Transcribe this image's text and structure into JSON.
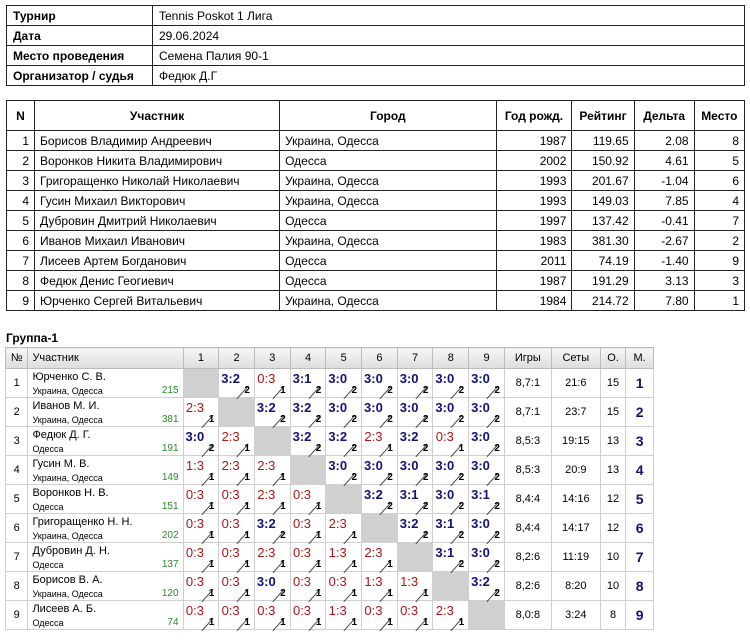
{
  "info": [
    {
      "label": "Турнир",
      "value": "Tennis Poskot 1 Лига"
    },
    {
      "label": "Дата",
      "value": "29.06.2024"
    },
    {
      "label": "Место проведения",
      "value": "Семена Палия 90-1"
    },
    {
      "label": "Организатор / судья",
      "value": "Федюк Д.Г"
    }
  ],
  "participants": {
    "headers": [
      "N",
      "Участник",
      "Город",
      "Год рожд.",
      "Рейтинг",
      "Дельта",
      "Место"
    ],
    "rows": [
      [
        "1",
        "Борисов Владимир Андреевич",
        "Украина, Одесса",
        "1987",
        "119.65",
        "2.08",
        "8"
      ],
      [
        "2",
        "Воронков Никита Владимирович",
        "Одесса",
        "2002",
        "150.92",
        "4.61",
        "5"
      ],
      [
        "3",
        "Григоращенко Николай Николаевич",
        "Украина, Одесса",
        "1993",
        "201.67",
        "-1.04",
        "6"
      ],
      [
        "4",
        "Гусин Михаил Викторович",
        "Украина, Одесса",
        "1993",
        "149.03",
        "7.85",
        "4"
      ],
      [
        "5",
        "Дубровин Дмитрий Николаевич",
        "Одесса",
        "1997",
        "137.42",
        "-0.41",
        "7"
      ],
      [
        "6",
        "Иванов Михаил Иванович",
        "Украина, Одесса",
        "1983",
        "381.30",
        "-2.67",
        "2"
      ],
      [
        "7",
        "Лисеев Артем Богданович",
        "Одесса",
        "2011",
        "74.19",
        "-1.40",
        "9"
      ],
      [
        "8",
        "Федюк Денис Геогиевич",
        "Одесса",
        "1987",
        "191.29",
        "3.13",
        "3"
      ],
      [
        "9",
        "Юрченко Сергей Витальевич",
        "Украина, Одесса",
        "1984",
        "214.72",
        "7.80",
        "1"
      ]
    ]
  },
  "group": {
    "title": "Группа-1",
    "headers": {
      "no": "№",
      "player": "Участник",
      "cols": [
        "1",
        "2",
        "3",
        "4",
        "5",
        "6",
        "7",
        "8",
        "9"
      ],
      "games": "Игры",
      "sets": "Сеты",
      "points": "О.",
      "place": "М."
    },
    "rows": [
      {
        "no": "1",
        "name": "Юрченко С. В.",
        "city": "Украина, Одесса",
        "rating": "215",
        "cells": [
          null,
          [
            "3:2",
            "2"
          ],
          [
            "0:3",
            "1"
          ],
          [
            "3:1",
            "2"
          ],
          [
            "3:0",
            "2"
          ],
          [
            "3:0",
            "2"
          ],
          [
            "3:0",
            "2"
          ],
          [
            "3:0",
            "2"
          ],
          [
            "3:0",
            "2"
          ]
        ],
        "games": "8,7:1",
        "sets": "21:6",
        "points": "15",
        "place": "1"
      },
      {
        "no": "2",
        "name": "Иванов М. И.",
        "city": "Украина, Одесса",
        "rating": "381",
        "cells": [
          [
            "2:3",
            "1"
          ],
          null,
          [
            "3:2",
            "2"
          ],
          [
            "3:2",
            "2"
          ],
          [
            "3:0",
            "2"
          ],
          [
            "3:0",
            "2"
          ],
          [
            "3:0",
            "2"
          ],
          [
            "3:0",
            "2"
          ],
          [
            "3:0",
            "2"
          ]
        ],
        "games": "8,7:1",
        "sets": "23:7",
        "points": "15",
        "place": "2"
      },
      {
        "no": "3",
        "name": "Федюк Д. Г.",
        "city": "Одесса",
        "rating": "191",
        "cells": [
          [
            "3:0",
            "2"
          ],
          [
            "2:3",
            "1"
          ],
          null,
          [
            "3:2",
            "2"
          ],
          [
            "3:2",
            "2"
          ],
          [
            "2:3",
            "1"
          ],
          [
            "3:2",
            "2"
          ],
          [
            "0:3",
            "1"
          ],
          [
            "3:0",
            "2"
          ]
        ],
        "games": "8,5:3",
        "sets": "19:15",
        "points": "13",
        "place": "3"
      },
      {
        "no": "4",
        "name": "Гусин М. В.",
        "city": "Украина, Одесса",
        "rating": "149",
        "cells": [
          [
            "1:3",
            "1"
          ],
          [
            "2:3",
            "1"
          ],
          [
            "2:3",
            "1"
          ],
          null,
          [
            "3:0",
            "2"
          ],
          [
            "3:0",
            "2"
          ],
          [
            "3:0",
            "2"
          ],
          [
            "3:0",
            "2"
          ],
          [
            "3:0",
            "2"
          ]
        ],
        "games": "8,5:3",
        "sets": "20:9",
        "points": "13",
        "place": "4"
      },
      {
        "no": "5",
        "name": "Воронков Н. В.",
        "city": "Одесса",
        "rating": "151",
        "cells": [
          [
            "0:3",
            "1"
          ],
          [
            "0:3",
            "1"
          ],
          [
            "2:3",
            "1"
          ],
          [
            "0:3",
            "1"
          ],
          null,
          [
            "3:2",
            "2"
          ],
          [
            "3:1",
            "2"
          ],
          [
            "3:0",
            "2"
          ],
          [
            "3:1",
            "2"
          ]
        ],
        "games": "8,4:4",
        "sets": "14:16",
        "points": "12",
        "place": "5"
      },
      {
        "no": "6",
        "name": "Григоращенко Н. Н.",
        "city": "Украина, Одесса",
        "rating": "202",
        "cells": [
          [
            "0:3",
            "1"
          ],
          [
            "0:3",
            "1"
          ],
          [
            "3:2",
            "2"
          ],
          [
            "0:3",
            "1"
          ],
          [
            "2:3",
            "1"
          ],
          null,
          [
            "3:2",
            "2"
          ],
          [
            "3:1",
            "2"
          ],
          [
            "3:0",
            "2"
          ]
        ],
        "games": "8,4:4",
        "sets": "14:17",
        "points": "12",
        "place": "6"
      },
      {
        "no": "7",
        "name": "Дубровин Д. Н.",
        "city": "Одесса",
        "rating": "137",
        "cells": [
          [
            "0:3",
            "1"
          ],
          [
            "0:3",
            "1"
          ],
          [
            "2:3",
            "1"
          ],
          [
            "0:3",
            "1"
          ],
          [
            "1:3",
            "1"
          ],
          [
            "2:3",
            "1"
          ],
          null,
          [
            "3:1",
            "2"
          ],
          [
            "3:0",
            "2"
          ]
        ],
        "games": "8,2:6",
        "sets": "11:19",
        "points": "10",
        "place": "7"
      },
      {
        "no": "8",
        "name": "Борисов В. А.",
        "city": "Украина, Одесса",
        "rating": "120",
        "cells": [
          [
            "0:3",
            "1"
          ],
          [
            "0:3",
            "1"
          ],
          [
            "3:0",
            "2"
          ],
          [
            "0:3",
            "1"
          ],
          [
            "0:3",
            "1"
          ],
          [
            "1:3",
            "1"
          ],
          [
            "1:3",
            "1"
          ],
          null,
          [
            "3:2",
            "2"
          ]
        ],
        "games": "8,2:6",
        "sets": "8:20",
        "points": "10",
        "place": "8"
      },
      {
        "no": "9",
        "name": "Лисеев А. Б.",
        "city": "Одесса",
        "rating": "74",
        "cells": [
          [
            "0:3",
            "1"
          ],
          [
            "0:3",
            "1"
          ],
          [
            "0:3",
            "1"
          ],
          [
            "0:3",
            "1"
          ],
          [
            "1:3",
            "1"
          ],
          [
            "0:3",
            "1"
          ],
          [
            "0:3",
            "1"
          ],
          [
            "2:3",
            "1"
          ],
          null
        ],
        "games": "8,0:8",
        "sets": "3:24",
        "points": "8",
        "place": "9"
      }
    ]
  }
}
